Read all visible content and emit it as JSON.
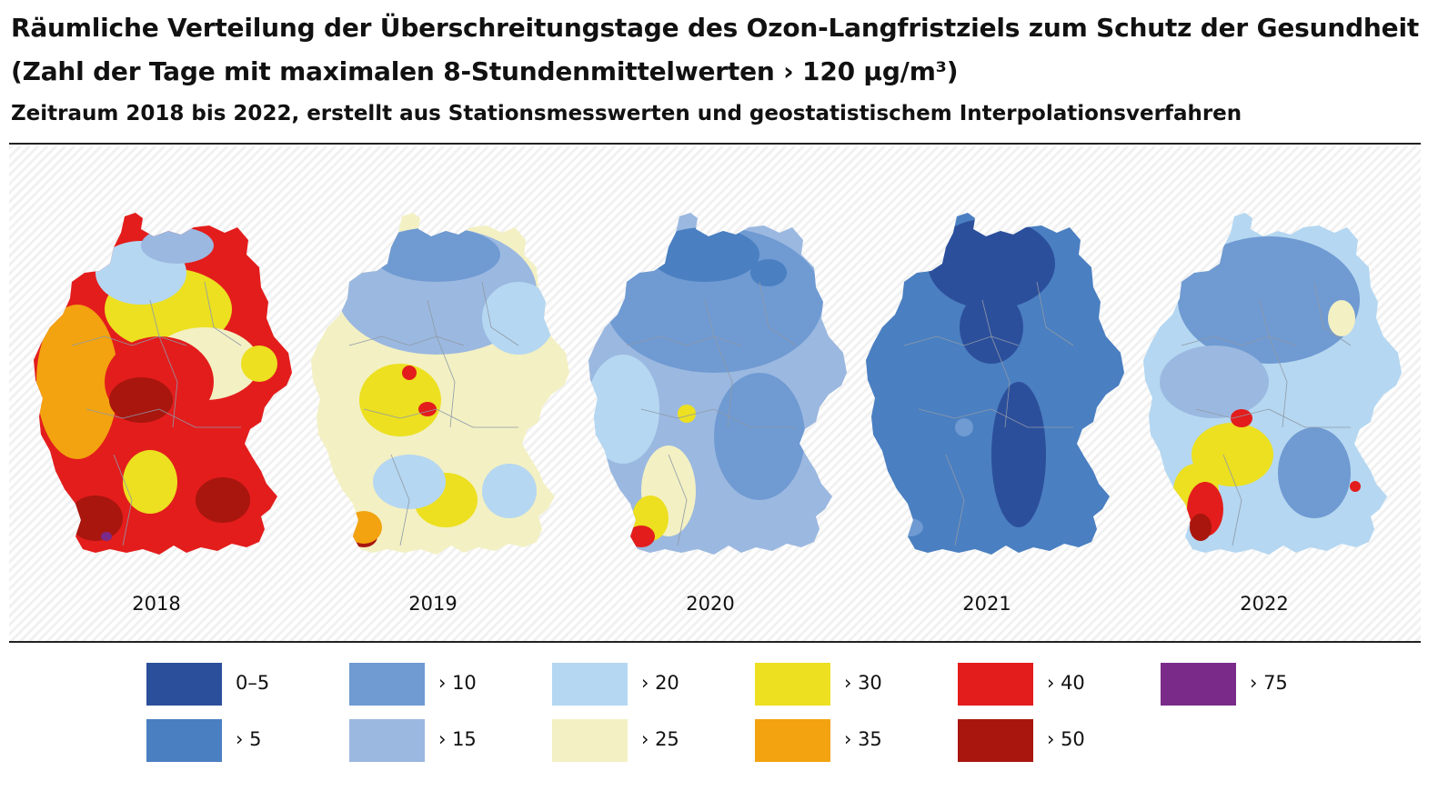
{
  "header": {
    "title_line1": "Räumliche Verteilung der Überschreitungstage des Ozon-Langfristziels zum Schutz der Gesundheit",
    "title_line2": "(Zahl der Tage mit maximalen 8-Stundenmittelwerten › 120 µg/m³)",
    "subtitle": "Zeitraum 2018 bis 2022, erstellt aus Stationsmesswerten und geostatistischem Interpolationsverfahren"
  },
  "maps": [
    {
      "year": "2018",
      "base_class": "> 40",
      "dominant_classes": [
        "> 35",
        "> 40",
        "> 50",
        "> 30"
      ]
    },
    {
      "year": "2019",
      "base_class": "> 25",
      "dominant_classes": [
        "> 15",
        "> 20",
        "> 25",
        "> 30"
      ]
    },
    {
      "year": "2020",
      "base_class": "> 15",
      "dominant_classes": [
        "> 10",
        "> 15",
        "> 20"
      ]
    },
    {
      "year": "2021",
      "base_class": "> 5",
      "dominant_classes": [
        "0–5",
        "> 5"
      ]
    },
    {
      "year": "2022",
      "base_class": "> 20",
      "dominant_classes": [
        "> 10",
        "> 15",
        "> 20",
        "> 30",
        "> 40"
      ]
    }
  ],
  "legend": [
    {
      "label": "0–5",
      "color": "#2c4f9c"
    },
    {
      "label": "› 5",
      "color": "#4a7fc1"
    },
    {
      "label": "› 10",
      "color": "#6f9ad2"
    },
    {
      "label": "› 15",
      "color": "#9bb8e0"
    },
    {
      "label": "› 20",
      "color": "#b5d7f1"
    },
    {
      "label": "› 25",
      "color": "#f3f0c3"
    },
    {
      "label": "› 30",
      "color": "#ece020"
    },
    {
      "label": "› 35",
      "color": "#f2a30f"
    },
    {
      "label": "› 40",
      "color": "#e31d1c"
    },
    {
      "label": "› 50",
      "color": "#a8160e"
    },
    {
      "label": "› 75",
      "color": "#7a2b8a"
    }
  ]
}
